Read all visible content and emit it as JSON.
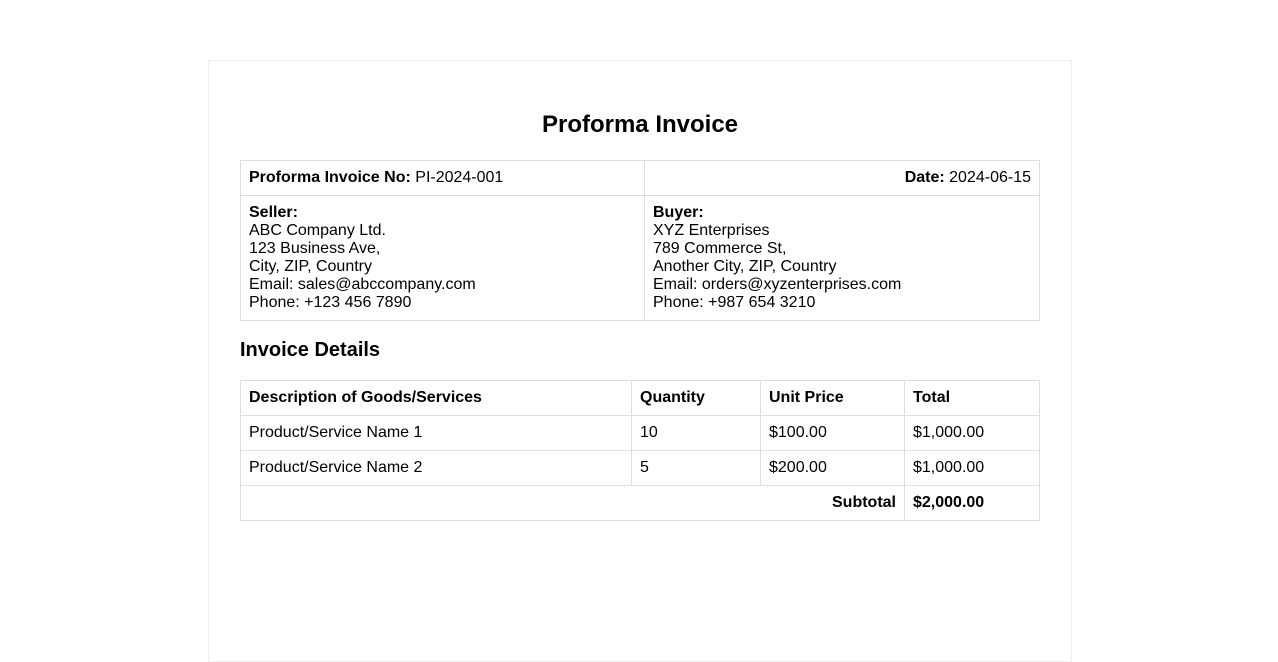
{
  "title": "Proforma Invoice",
  "header": {
    "invoice_no_label": "Proforma Invoice No:",
    "invoice_no": "PI-2024-001",
    "date_label": "Date:",
    "date": "2024-06-15"
  },
  "seller": {
    "label": "Seller:",
    "lines": [
      "ABC Company Ltd.",
      "123 Business Ave,",
      "City, ZIP, Country",
      "Email: sales@abccompany.com",
      "Phone: +123 456 7890"
    ]
  },
  "buyer": {
    "label": "Buyer:",
    "lines": [
      "XYZ Enterprises",
      "789 Commerce St,",
      "Another City, ZIP, Country",
      "Email: orders@xyzenterprises.com",
      "Phone: +987 654 3210"
    ]
  },
  "details": {
    "heading": "Invoice Details",
    "columns": [
      "Description of Goods/Services",
      "Quantity",
      "Unit Price",
      "Total"
    ],
    "rows": [
      [
        "Product/Service Name 1",
        "10",
        "$100.00",
        "$1,000.00"
      ],
      [
        "Product/Service Name 2",
        "5",
        "$200.00",
        "$1,000.00"
      ]
    ],
    "subtotal_label": "Subtotal",
    "subtotal": "$2,000.00"
  }
}
